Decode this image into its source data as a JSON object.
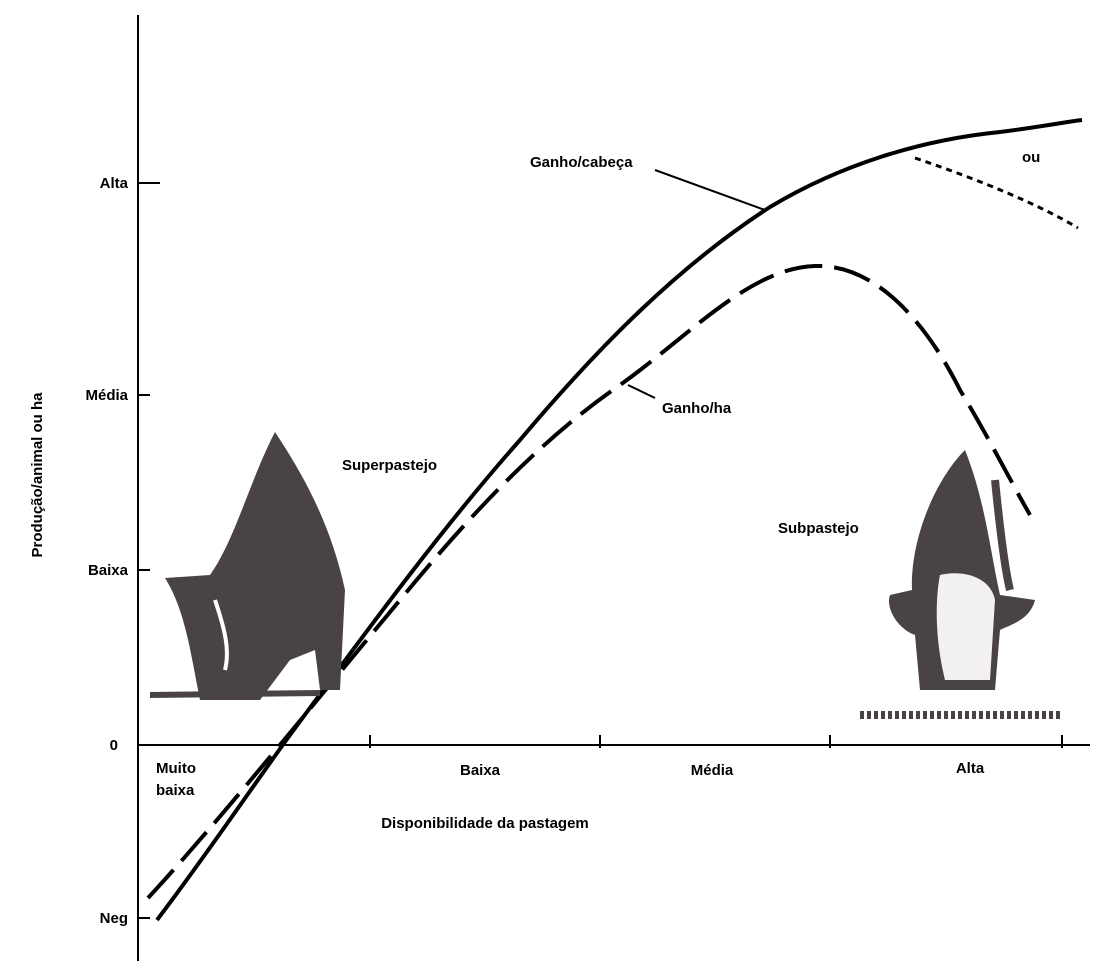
{
  "y_axis": {
    "title": "Produção/animal ou ha",
    "labels": [
      "Alta",
      "Média",
      "Baixa",
      "0",
      "Neg"
    ]
  },
  "x_axis": {
    "title": "Disponibilidade da pastagem",
    "labels": [
      [
        "Muito",
        "baixa"
      ],
      [
        "Baixa"
      ],
      [
        "Média"
      ],
      [
        "Alta"
      ]
    ]
  },
  "annotations": {
    "gain_per_head": "Ganho/cabeça",
    "gain_per_ha": "Ganho/ha",
    "or": "ou",
    "overgrazing": "Superpastejo",
    "undergrazing": "Subpastejo"
  }
}
